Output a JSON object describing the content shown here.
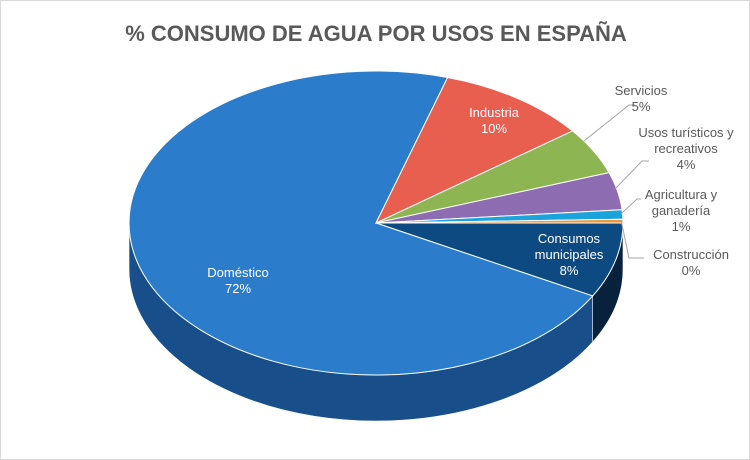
{
  "chart_data": {
    "type": "pie",
    "title": "% CONSUMO DE AGUA POR USOS EN ESPAÑA",
    "style": "3d",
    "slices": [
      {
        "name": "Consumos municipales",
        "label_lines": [
          "Consumos",
          "municipales"
        ],
        "value": 8,
        "display": "8%",
        "color": "#0e4a82",
        "side": "#08213d"
      },
      {
        "name": "Doméstico",
        "label_lines": [
          "Doméstico"
        ],
        "value": 72,
        "display": "72%",
        "color": "#2b7dcc",
        "side": "#184f8a"
      },
      {
        "name": "Industria",
        "label_lines": [
          "Industria"
        ],
        "value": 10,
        "display": "10%",
        "color": "#e85e4f",
        "side": "#a8392e"
      },
      {
        "name": "Servicios",
        "label_lines": [
          "Servicios"
        ],
        "value": 5,
        "display": "5%",
        "color": "#8db552",
        "side": "#5f7e33"
      },
      {
        "name": "Usos turísticos y recreativos",
        "label_lines": [
          "Usos turísticos y",
          "recreativos"
        ],
        "value": 4,
        "display": "4%",
        "color": "#8d6cb2",
        "side": "#5d4579"
      },
      {
        "name": "Agricultura y ganadería",
        "label_lines": [
          "Agricultura y",
          "ganadería"
        ],
        "value": 1,
        "display": "1%",
        "color": "#1ba3dc",
        "side": "#106a91"
      },
      {
        "name": "Construcción",
        "label_lines": [
          "Construcción"
        ],
        "value": 0.4,
        "display": "0%",
        "color": "#f39530",
        "side": "#a8621a"
      }
    ]
  }
}
